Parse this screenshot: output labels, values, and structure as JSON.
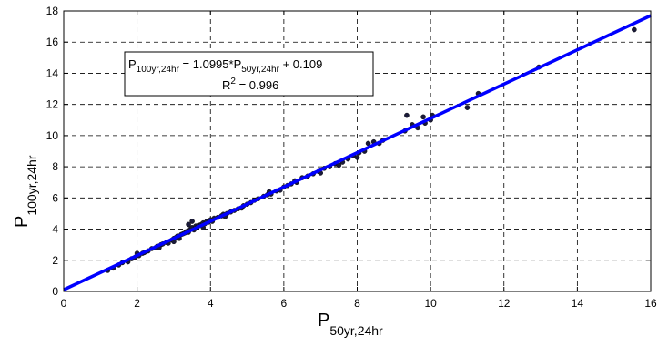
{
  "chart_data": {
    "type": "scatter",
    "title": "",
    "xlabel": {
      "main": "P",
      "sub": "50yr,24hr"
    },
    "ylabel": {
      "main": "P",
      "sub": "100yr,24hr"
    },
    "xlim": [
      0,
      16
    ],
    "ylim": [
      0,
      18
    ],
    "xticks": [
      "0",
      "2",
      "4",
      "6",
      "8",
      "10",
      "12",
      "14",
      "16"
    ],
    "yticks": [
      "0",
      "2",
      "4",
      "6",
      "8",
      "10",
      "12",
      "14",
      "16",
      "18"
    ],
    "grid": true,
    "point_color": "#1a1a3a",
    "line_color": "#0000ff",
    "fit": {
      "slope": 1.0995,
      "intercept": 0.109,
      "x_range": [
        0,
        16
      ]
    },
    "annotation": {
      "eq_p1": "P",
      "eq_sub1": "100yr,24hr",
      "eq_mid": " = 1.0995*P",
      "eq_sub2": "50yr,24hr",
      "eq_end": " + 0.109",
      "r2_label": "R",
      "r2_sup": "2",
      "r2_value": " = 0.996"
    },
    "points": [
      [
        1.2,
        1.35
      ],
      [
        1.35,
        1.5
      ],
      [
        1.5,
        1.7
      ],
      [
        1.6,
        1.85
      ],
      [
        1.75,
        1.9
      ],
      [
        1.85,
        2.1
      ],
      [
        1.95,
        2.2
      ],
      [
        2.0,
        2.45
      ],
      [
        2.05,
        2.3
      ],
      [
        2.15,
        2.45
      ],
      [
        2.2,
        2.5
      ],
      [
        2.3,
        2.6
      ],
      [
        2.4,
        2.75
      ],
      [
        2.5,
        2.8
      ],
      [
        2.55,
        2.9
      ],
      [
        2.65,
        3.0
      ],
      [
        2.7,
        3.05
      ],
      [
        2.8,
        3.15
      ],
      [
        2.85,
        3.1
      ],
      [
        2.95,
        3.3
      ],
      [
        3.0,
        3.4
      ],
      [
        3.05,
        3.45
      ],
      [
        3.1,
        3.55
      ],
      [
        3.15,
        3.4
      ],
      [
        3.2,
        3.65
      ],
      [
        3.25,
        3.7
      ],
      [
        3.3,
        3.75
      ],
      [
        3.35,
        3.85
      ],
      [
        3.4,
        3.8
      ],
      [
        3.45,
        4.0
      ],
      [
        3.5,
        4.1
      ],
      [
        3.55,
        3.95
      ],
      [
        3.6,
        4.2
      ],
      [
        3.65,
        4.15
      ],
      [
        3.7,
        4.25
      ],
      [
        3.75,
        4.3
      ],
      [
        3.8,
        4.4
      ],
      [
        3.85,
        4.35
      ],
      [
        3.9,
        4.5
      ],
      [
        3.95,
        4.45
      ],
      [
        4.0,
        4.6
      ],
      [
        4.05,
        4.5
      ],
      [
        4.1,
        4.7
      ],
      [
        4.2,
        4.75
      ],
      [
        4.3,
        4.85
      ],
      [
        4.35,
        4.95
      ],
      [
        4.45,
        5.0
      ],
      [
        4.55,
        5.1
      ],
      [
        4.65,
        5.2
      ],
      [
        4.75,
        5.3
      ],
      [
        4.85,
        5.35
      ],
      [
        5.0,
        5.6
      ],
      [
        5.1,
        5.7
      ],
      [
        5.2,
        5.85
      ],
      [
        5.3,
        5.95
      ],
      [
        5.45,
        6.1
      ],
      [
        5.55,
        6.2
      ],
      [
        5.65,
        6.25
      ],
      [
        5.8,
        6.45
      ],
      [
        5.9,
        6.5
      ],
      [
        6.0,
        6.7
      ],
      [
        6.1,
        6.8
      ],
      [
        6.2,
        6.9
      ],
      [
        6.35,
        7.0
      ],
      [
        6.5,
        7.3
      ],
      [
        6.65,
        7.4
      ],
      [
        6.8,
        7.55
      ],
      [
        6.95,
        7.7
      ],
      [
        7.1,
        7.9
      ],
      [
        7.25,
        8.0
      ],
      [
        7.4,
        8.2
      ],
      [
        7.6,
        8.3
      ],
      [
        7.75,
        8.5
      ],
      [
        7.9,
        8.7
      ],
      [
        8.05,
        8.9
      ],
      [
        8.2,
        9.0
      ],
      [
        8.3,
        9.5
      ],
      [
        8.45,
        9.6
      ],
      [
        8.6,
        9.5
      ],
      [
        8.7,
        9.7
      ],
      [
        9.3,
        10.3
      ],
      [
        9.35,
        11.3
      ],
      [
        9.5,
        10.7
      ],
      [
        9.65,
        10.5
      ],
      [
        9.8,
        11.2
      ],
      [
        9.85,
        10.8
      ],
      [
        10.0,
        11.0
      ],
      [
        10.05,
        11.3
      ],
      [
        11.0,
        11.8
      ],
      [
        11.3,
        12.7
      ],
      [
        12.95,
        14.4
      ],
      [
        15.55,
        16.8
      ],
      [
        3.4,
        4.3
      ],
      [
        3.5,
        4.5
      ],
      [
        3.0,
        3.2
      ],
      [
        2.6,
        2.8
      ],
      [
        4.4,
        4.8
      ],
      [
        3.8,
        4.1
      ],
      [
        6.3,
        7.1
      ],
      [
        7.0,
        7.6
      ],
      [
        5.6,
        6.4
      ],
      [
        8.0,
        8.6
      ],
      [
        7.5,
        8.1
      ],
      [
        4.9,
        5.5
      ]
    ]
  }
}
